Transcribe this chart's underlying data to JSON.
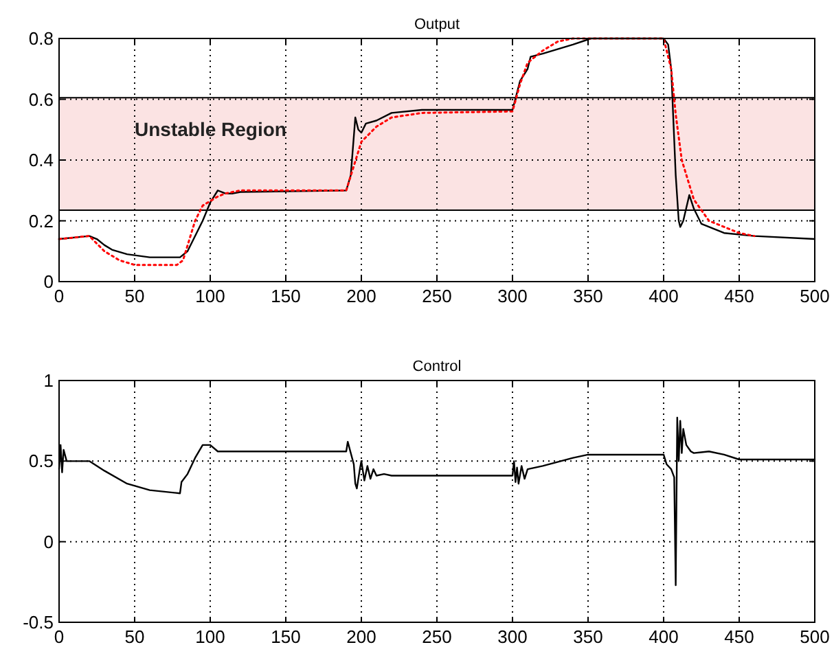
{
  "chart_data": [
    {
      "type": "line",
      "title": "Output",
      "xlim": [
        0,
        500
      ],
      "xticks": [
        0,
        50,
        100,
        150,
        200,
        250,
        300,
        350,
        400,
        450,
        500
      ],
      "ylim": [
        0,
        0.8
      ],
      "yticks": [
        0,
        0.2,
        0.4,
        0.6,
        0.8
      ],
      "grid": true,
      "ref_lines": [
        {
          "axis": "y",
          "value": 0.235,
          "color": "#000000"
        },
        {
          "axis": "y",
          "value": 0.605,
          "color": "#000000"
        }
      ],
      "bands": [
        {
          "axis": "y",
          "from": 0.235,
          "to": 0.605,
          "label": "Unstable Region",
          "color": "#fbe3e3"
        }
      ],
      "series": [
        {
          "color": "#000000",
          "line_style": "solid",
          "x": [
            0,
            20,
            25,
            30,
            35,
            45,
            60,
            80,
            85,
            95,
            100,
            105,
            110,
            115,
            120,
            190,
            193,
            196,
            198,
            200,
            203,
            210,
            220,
            240,
            300,
            305,
            310,
            312,
            320,
            340,
            352,
            400,
            403,
            405,
            408,
            410,
            411,
            413,
            417,
            420,
            425,
            440,
            460,
            500
          ],
          "values": [
            0.14,
            0.15,
            0.14,
            0.12,
            0.105,
            0.09,
            0.08,
            0.08,
            0.1,
            0.2,
            0.26,
            0.3,
            0.29,
            0.29,
            0.295,
            0.3,
            0.35,
            0.54,
            0.5,
            0.49,
            0.52,
            0.53,
            0.555,
            0.565,
            0.565,
            0.66,
            0.7,
            0.74,
            0.75,
            0.78,
            0.8,
            0.8,
            0.78,
            0.7,
            0.35,
            0.2,
            0.18,
            0.2,
            0.285,
            0.24,
            0.19,
            0.16,
            0.15,
            0.14
          ]
        },
        {
          "color": "#ff0000",
          "line_style": "dotted",
          "x": [
            0,
            20,
            30,
            40,
            50,
            78,
            82,
            90,
            95,
            105,
            110,
            120,
            190,
            195,
            200,
            210,
            220,
            240,
            300,
            305,
            310,
            320,
            330,
            340,
            400,
            405,
            408,
            412,
            420,
            430,
            450,
            460
          ],
          "values": [
            0.14,
            0.15,
            0.1,
            0.07,
            0.055,
            0.055,
            0.07,
            0.2,
            0.25,
            0.28,
            0.29,
            0.3,
            0.3,
            0.38,
            0.46,
            0.51,
            0.54,
            0.555,
            0.56,
            0.65,
            0.72,
            0.76,
            0.79,
            0.8,
            0.8,
            0.7,
            0.55,
            0.4,
            0.27,
            0.2,
            0.16,
            0.15
          ]
        }
      ]
    },
    {
      "type": "line",
      "title": "Control",
      "xlim": [
        0,
        500
      ],
      "xticks": [
        0,
        50,
        100,
        150,
        200,
        250,
        300,
        350,
        400,
        450,
        500
      ],
      "ylim": [
        -0.5,
        1
      ],
      "yticks": [
        -0.5,
        0,
        0.5,
        1
      ],
      "grid": true,
      "series": [
        {
          "color": "#000000",
          "line_style": "solid",
          "x": [
            0,
            1,
            2,
            3,
            5,
            20,
            30,
            45,
            60,
            80,
            81,
            85,
            90,
            95,
            100,
            105,
            110,
            115,
            190,
            191,
            195,
            196,
            197,
            199,
            200,
            202,
            204,
            206,
            208,
            210,
            215,
            220,
            300,
            301,
            302,
            303,
            304,
            306,
            308,
            310,
            320,
            340,
            350,
            400,
            402,
            405,
            407,
            408,
            409,
            410,
            411,
            412,
            413,
            415,
            418,
            420,
            430,
            440,
            450,
            500
          ],
          "values": [
            0.45,
            0.6,
            0.43,
            0.57,
            0.5,
            0.5,
            0.44,
            0.36,
            0.32,
            0.3,
            0.37,
            0.42,
            0.52,
            0.6,
            0.6,
            0.56,
            0.56,
            0.56,
            0.56,
            0.62,
            0.48,
            0.36,
            0.33,
            0.45,
            0.5,
            0.38,
            0.47,
            0.39,
            0.45,
            0.41,
            0.42,
            0.41,
            0.41,
            0.5,
            0.37,
            0.46,
            0.36,
            0.47,
            0.39,
            0.45,
            0.47,
            0.52,
            0.54,
            0.54,
            0.48,
            0.45,
            0.4,
            -0.27,
            0.77,
            0.5,
            0.75,
            0.55,
            0.7,
            0.6,
            0.56,
            0.55,
            0.56,
            0.54,
            0.51,
            0.51
          ]
        }
      ]
    }
  ]
}
